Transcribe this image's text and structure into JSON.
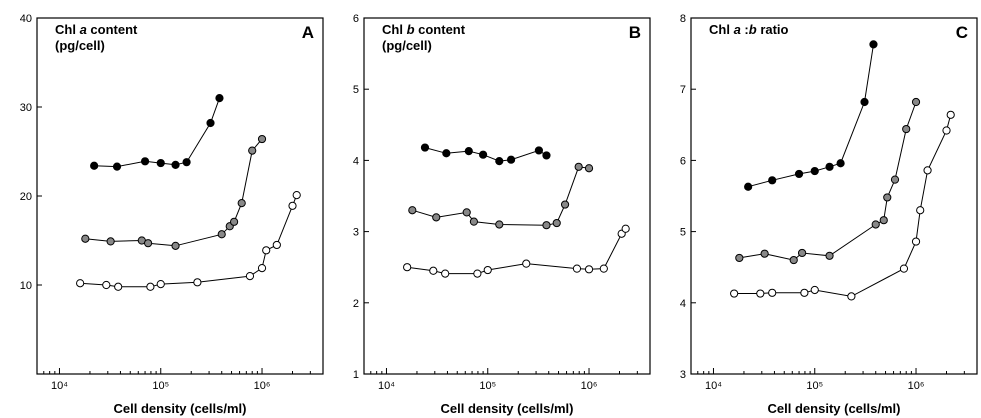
{
  "chart_data": [
    {
      "type": "line",
      "panel_letter": "A",
      "title_lines": [
        {
          "pre": "Chl ",
          "italic": "a",
          "post": " content"
        },
        {
          "pre": "(pg/cell)",
          "italic": "",
          "post": ""
        }
      ],
      "xlabel": "Cell density (cells/ml)",
      "x_scale": "log",
      "xlim": [
        6000,
        4000000
      ],
      "x_ticks": [
        {
          "value": 10000,
          "label": "10⁴"
        },
        {
          "value": 100000,
          "label": "10⁵"
        },
        {
          "value": 1000000,
          "label": "10⁶"
        }
      ],
      "ylim": [
        0,
        40
      ],
      "y_ticks": [
        {
          "value": 10,
          "label": "10"
        },
        {
          "value": 20,
          "label": "20"
        },
        {
          "value": 30,
          "label": "30"
        },
        {
          "value": 40,
          "label": "40"
        }
      ],
      "series": [
        {
          "marker_fill": "#000000",
          "points": [
            [
              22000,
              23.4
            ],
            [
              37000,
              23.3
            ],
            [
              70000,
              23.9
            ],
            [
              100000,
              23.7
            ],
            [
              140000,
              23.5
            ],
            [
              180000,
              23.8
            ],
            [
              310000,
              28.2
            ],
            [
              380000,
              31.0
            ]
          ]
        },
        {
          "marker_fill": "#888888",
          "points": [
            [
              18000,
              15.2
            ],
            [
              32000,
              14.9
            ],
            [
              65000,
              15.0
            ],
            [
              75000,
              14.7
            ],
            [
              140000,
              14.4
            ],
            [
              400000,
              15.7
            ],
            [
              480000,
              16.6
            ],
            [
              530000,
              17.1
            ],
            [
              630000,
              19.2
            ],
            [
              800000,
              25.1
            ],
            [
              1000000,
              26.4
            ]
          ]
        },
        {
          "marker_fill": "#ffffff",
          "points": [
            [
              16000,
              10.2
            ],
            [
              29000,
              10.0
            ],
            [
              38000,
              9.8
            ],
            [
              79000,
              9.8
            ],
            [
              100000,
              10.1
            ],
            [
              230000,
              10.3
            ],
            [
              760000,
              11.0
            ],
            [
              1000000,
              11.9
            ],
            [
              1100000,
              13.9
            ],
            [
              1400000,
              14.5
            ],
            [
              2000000,
              18.9
            ],
            [
              2200000,
              20.1
            ]
          ]
        }
      ]
    },
    {
      "type": "line",
      "panel_letter": "B",
      "title_lines": [
        {
          "pre": "Chl ",
          "italic": "b",
          "post": " content"
        },
        {
          "pre": "(pg/cell)",
          "italic": "",
          "post": ""
        }
      ],
      "xlabel": "Cell density (cells/ml)",
      "x_scale": "log",
      "xlim": [
        6000,
        4000000
      ],
      "x_ticks": [
        {
          "value": 10000,
          "label": "10⁴"
        },
        {
          "value": 100000,
          "label": "10⁵"
        },
        {
          "value": 1000000,
          "label": "10⁶"
        }
      ],
      "ylim": [
        1,
        6
      ],
      "y_ticks": [
        {
          "value": 1,
          "label": "1"
        },
        {
          "value": 2,
          "label": "2"
        },
        {
          "value": 3,
          "label": "3"
        },
        {
          "value": 4,
          "label": "4"
        },
        {
          "value": 5,
          "label": "5"
        },
        {
          "value": 6,
          "label": "6"
        }
      ],
      "series": [
        {
          "marker_fill": "#000000",
          "points": [
            [
              24000,
              4.18
            ],
            [
              39000,
              4.1
            ],
            [
              65000,
              4.13
            ],
            [
              90000,
              4.08
            ],
            [
              130000,
              3.99
            ],
            [
              170000,
              4.01
            ],
            [
              320000,
              4.14
            ],
            [
              380000,
              4.07
            ]
          ]
        },
        {
          "marker_fill": "#888888",
          "points": [
            [
              18000,
              3.3
            ],
            [
              31000,
              3.2
            ],
            [
              62000,
              3.27
            ],
            [
              73000,
              3.14
            ],
            [
              130000,
              3.1
            ],
            [
              380000,
              3.09
            ],
            [
              480000,
              3.12
            ],
            [
              580000,
              3.38
            ],
            [
              790000,
              3.91
            ],
            [
              1000000,
              3.89
            ]
          ]
        },
        {
          "marker_fill": "#ffffff",
          "points": [
            [
              16000,
              2.5
            ],
            [
              29000,
              2.45
            ],
            [
              38000,
              2.41
            ],
            [
              79000,
              2.41
            ],
            [
              100000,
              2.46
            ],
            [
              240000,
              2.55
            ],
            [
              760000,
              2.48
            ],
            [
              1000000,
              2.47
            ],
            [
              1400000,
              2.48
            ],
            [
              2100000,
              2.97
            ],
            [
              2300000,
              3.04
            ]
          ]
        }
      ]
    },
    {
      "type": "line",
      "panel_letter": "C",
      "title_lines": [
        {
          "pre": "Chl ",
          "italic": "a",
          "post": " :",
          "italic2": "b",
          "post2": " ratio"
        }
      ],
      "xlabel": "Cell density (cells/ml)",
      "x_scale": "log",
      "xlim": [
        6000,
        4000000
      ],
      "x_ticks": [
        {
          "value": 10000,
          "label": "10⁴"
        },
        {
          "value": 100000,
          "label": "10⁵"
        },
        {
          "value": 1000000,
          "label": "10⁶"
        }
      ],
      "ylim": [
        3,
        8
      ],
      "y_ticks": [
        {
          "value": 3,
          "label": "3"
        },
        {
          "value": 4,
          "label": "4"
        },
        {
          "value": 5,
          "label": "5"
        },
        {
          "value": 6,
          "label": "6"
        },
        {
          "value": 7,
          "label": "7"
        },
        {
          "value": 8,
          "label": "8"
        }
      ],
      "series": [
        {
          "marker_fill": "#000000",
          "points": [
            [
              22000,
              5.63
            ],
            [
              38000,
              5.72
            ],
            [
              70000,
              5.81
            ],
            [
              100000,
              5.85
            ],
            [
              140000,
              5.91
            ],
            [
              180000,
              5.96
            ],
            [
              310000,
              6.82
            ],
            [
              380000,
              7.63
            ]
          ]
        },
        {
          "marker_fill": "#888888",
          "points": [
            [
              18000,
              4.63
            ],
            [
              32000,
              4.69
            ],
            [
              62000,
              4.6
            ],
            [
              75000,
              4.7
            ],
            [
              140000,
              4.66
            ],
            [
              400000,
              5.1
            ],
            [
              480000,
              5.16
            ],
            [
              520000,
              5.48
            ],
            [
              620000,
              5.73
            ],
            [
              800000,
              6.44
            ],
            [
              1000000,
              6.82
            ]
          ]
        },
        {
          "marker_fill": "#ffffff",
          "points": [
            [
              16000,
              4.13
            ],
            [
              29000,
              4.13
            ],
            [
              38000,
              4.14
            ],
            [
              79000,
              4.14
            ],
            [
              100000,
              4.18
            ],
            [
              230000,
              4.09
            ],
            [
              760000,
              4.48
            ],
            [
              1000000,
              4.86
            ],
            [
              1100000,
              5.3
            ],
            [
              1300000,
              5.86
            ],
            [
              2000000,
              6.42
            ],
            [
              2200000,
              6.64
            ]
          ]
        }
      ]
    }
  ]
}
